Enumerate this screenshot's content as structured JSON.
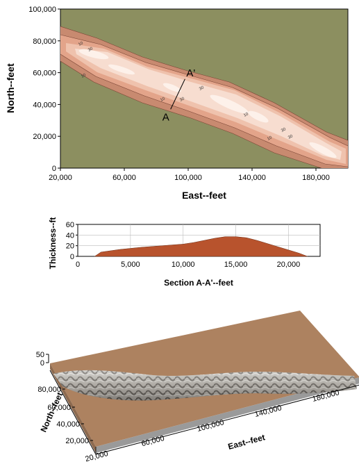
{
  "chart_data": [
    {
      "type": "contour-map",
      "xlabel": "East--feet",
      "ylabel": "North--feet",
      "xlim": [
        20000,
        200000
      ],
      "ylim": [
        0,
        100000
      ],
      "x_ticks": [
        "20,000",
        "60,000",
        "100,000",
        "140,000",
        "180,000"
      ],
      "y_ticks": [
        "0",
        "20,000",
        "40,000",
        "60,000",
        "80,000",
        "100,000"
      ],
      "x_tick_values": [
        20000,
        60000,
        100000,
        140000,
        180000
      ],
      "y_tick_values": [
        0,
        20000,
        40000,
        60000,
        80000,
        100000
      ],
      "contour_labels": [
        "10",
        "30",
        "10",
        "10",
        "30",
        "30",
        "10",
        "30",
        "10",
        "30"
      ],
      "section_line": {
        "start_label": "A",
        "end_label": "A'",
        "start": [
          89000,
          37000
        ],
        "end": [
          98000,
          56000
        ]
      },
      "colors": {
        "background": "#8c8f60",
        "zone_0": "#c88a70",
        "zone_10": "#e3a48a",
        "zone_20": "#efc2ad",
        "zone_30": "#f7ddd0",
        "zone_40": "#fdf1ea"
      }
    },
    {
      "type": "area",
      "xlabel": "Section A-A'--feet",
      "ylabel": "Thickness--ft",
      "xlim": [
        0,
        23000
      ],
      "ylim": [
        0,
        60
      ],
      "x_ticks": [
        "0",
        "5,000",
        "10,000",
        "15,000",
        "20,000"
      ],
      "y_ticks": [
        "0",
        "20",
        "40",
        "60"
      ],
      "x_tick_values": [
        0,
        5000,
        10000,
        15000,
        20000
      ],
      "y_tick_values": [
        0,
        20,
        40,
        60
      ],
      "x": [
        1600,
        2200,
        4000,
        6000,
        8000,
        10000,
        11000,
        12000,
        13000,
        14000,
        15000,
        16000,
        17000,
        18000,
        19000,
        20000,
        21000,
        21800
      ],
      "values": [
        0,
        8,
        13,
        17,
        20,
        23,
        26,
        30,
        34,
        37,
        37,
        35,
        30,
        24,
        18,
        12,
        6,
        0
      ],
      "fill": "#b8532d"
    },
    {
      "type": "3d-surface",
      "xlabel": "East--feet",
      "ylabel": "North--feet",
      "z_ticks": [
        "0",
        "50"
      ],
      "x_ticks": [
        "20,000",
        "60,000",
        "100,000",
        "140,000",
        "180,000"
      ],
      "y_ticks": [
        "20,000",
        "40,000",
        "60,000",
        "80,000"
      ],
      "colors": {
        "plane": "#a87e5b",
        "ridge_light": "#d8d6d2",
        "ridge_dark": "#3d3a36"
      }
    }
  ]
}
